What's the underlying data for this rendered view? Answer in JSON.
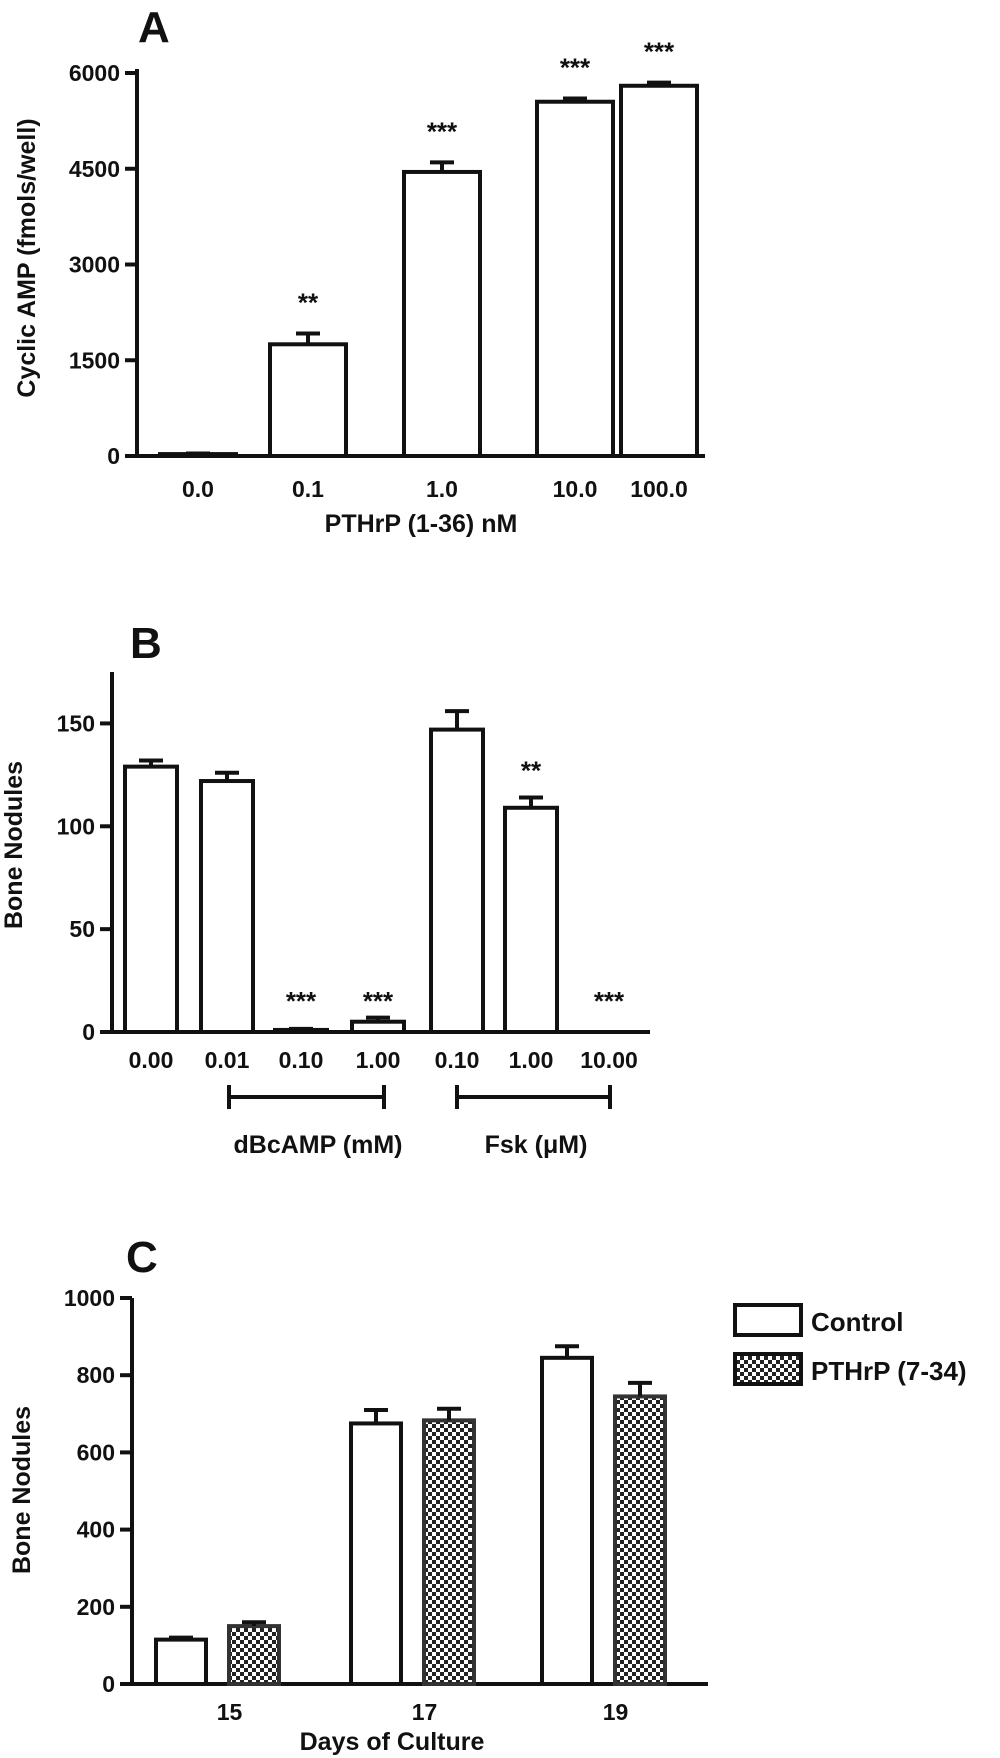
{
  "chart_data": [
    {
      "panel": "A",
      "type": "bar",
      "xlabel": "PTHrP (1-36) nM",
      "ylabel": "Cyclic AMP (fmols/well)",
      "ylim": [
        0,
        6000
      ],
      "yticks": [
        0,
        1500,
        3000,
        4500,
        6000
      ],
      "categories": [
        "0.0",
        "0.1",
        "1.0",
        "10.0",
        "100.0"
      ],
      "values": [
        30,
        1750,
        4450,
        5550,
        5800
      ],
      "errors": [
        10,
        170,
        150,
        50,
        50
      ],
      "significance": [
        "",
        "**",
        "***",
        "***",
        "***"
      ]
    },
    {
      "panel": "B",
      "type": "bar",
      "xlabel": "",
      "ylabel": "Bone Nodules",
      "ylim": [
        0,
        175
      ],
      "yticks": [
        0,
        50,
        100,
        150
      ],
      "categories": [
        "0.00",
        "0.01",
        "0.10",
        "1.00",
        "0.10",
        "1.00",
        "10.00"
      ],
      "values": [
        129,
        122,
        1,
        5,
        147,
        109,
        0
      ],
      "errors": [
        3,
        4,
        0.5,
        2,
        9,
        5,
        0
      ],
      "significance": [
        "",
        "",
        "***",
        "***",
        "",
        "**",
        "***"
      ],
      "groups": [
        {
          "label": "dBcAMP (mM)",
          "from": 2,
          "to": 3
        },
        {
          "label": "Fsk (μM)",
          "from": 4,
          "to": 6
        }
      ]
    },
    {
      "panel": "C",
      "type": "bar",
      "xlabel": "Days of Culture",
      "ylabel": "Bone Nodules",
      "ylim": [
        0,
        1000
      ],
      "yticks": [
        0,
        200,
        400,
        600,
        800,
        1000
      ],
      "categories": [
        "15",
        "17",
        "19"
      ],
      "series": [
        {
          "name": "Control",
          "values": [
            115,
            675,
            845
          ],
          "errors": [
            5,
            35,
            30
          ]
        },
        {
          "name": "PTHrP (7-34)",
          "values": [
            150,
            683,
            745
          ],
          "errors": [
            10,
            30,
            35
          ]
        }
      ],
      "legend_position": "top-right"
    }
  ]
}
